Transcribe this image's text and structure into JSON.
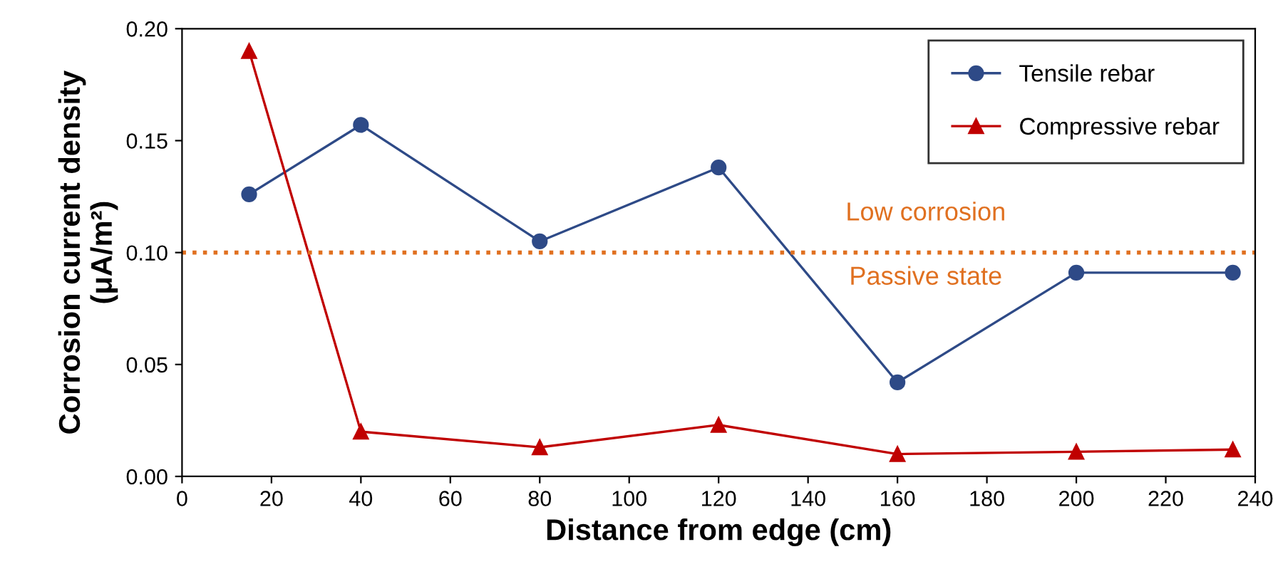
{
  "chart_data": {
    "type": "line",
    "xlabel": "Distance from edge (cm)",
    "ylabel": "Corrosion current density\n(μA/m²)",
    "xlim": [
      0,
      240
    ],
    "xticks": [
      0,
      20,
      40,
      60,
      80,
      100,
      120,
      140,
      160,
      180,
      200,
      220,
      240
    ],
    "ylim": [
      0,
      0.2
    ],
    "yticks": [
      {
        "value": 0,
        "label": "0.00"
      },
      {
        "value": 0.05,
        "label": "0.05"
      },
      {
        "value": 0.1,
        "label": "0.10"
      },
      {
        "value": 0.15,
        "label": "0.15"
      },
      {
        "value": 0.2,
        "label": "0.20"
      }
    ],
    "series": [
      {
        "name": "Tensile rebar",
        "color": "#2e4a87",
        "marker": "circle",
        "x": [
          15,
          40,
          80,
          120,
          160,
          200,
          235
        ],
        "values": [
          0.126,
          0.157,
          0.105,
          0.138,
          0.042,
          0.091,
          0.091
        ]
      },
      {
        "name": "Compressive rebar",
        "color": "#c00000",
        "marker": "triangle",
        "x": [
          15,
          40,
          80,
          120,
          160,
          200,
          235
        ],
        "values": [
          0.19,
          0.02,
          0.013,
          0.023,
          0.01,
          0.011,
          0.012
        ]
      }
    ],
    "ref_lines": [
      {
        "axis": "y",
        "value": 0.1,
        "color": "#e07020",
        "line_style": "dotted"
      }
    ],
    "annotations": [
      "Low corrosion",
      "Passive state"
    ],
    "grid": false,
    "legend": "top right",
    "line_style": "solid"
  }
}
